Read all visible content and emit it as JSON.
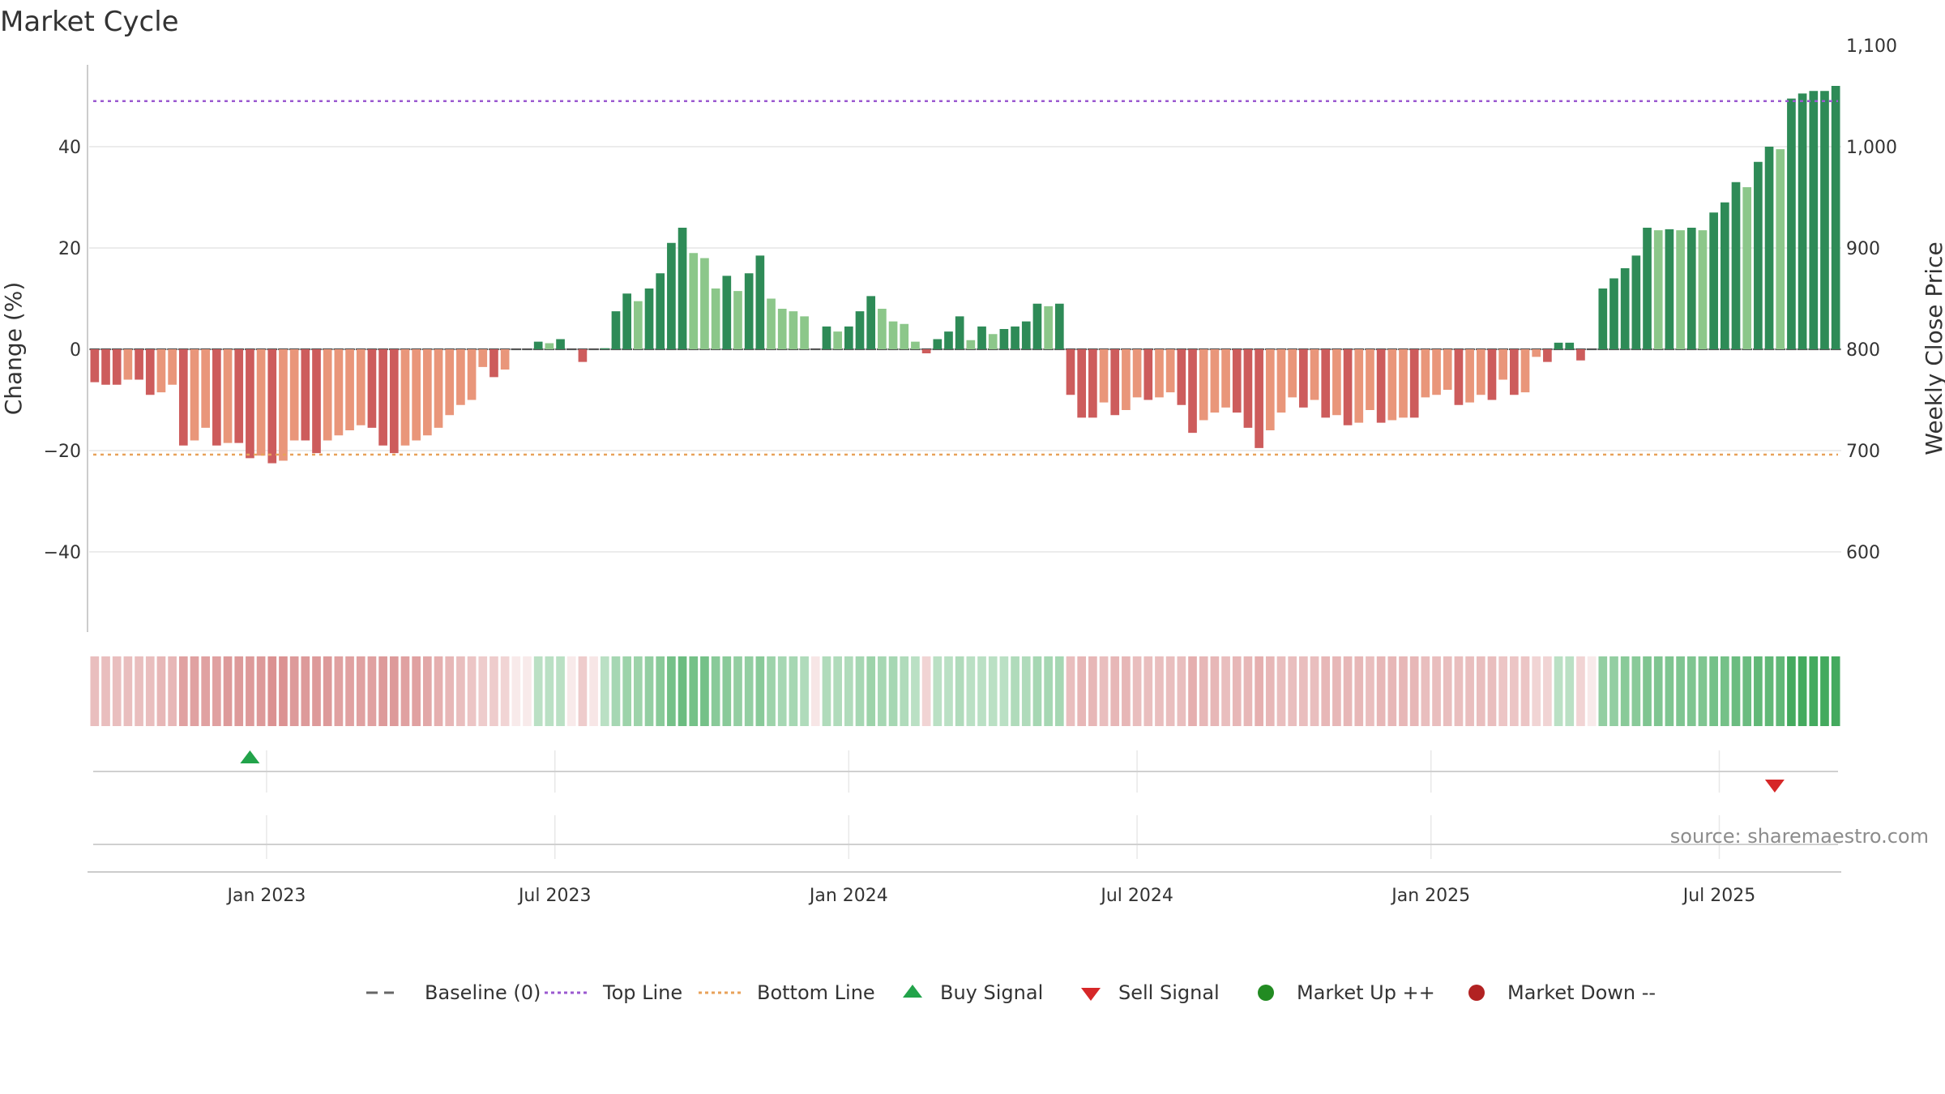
{
  "title": "Market Cycle",
  "source": "source: sharemaestro.com",
  "colors": {
    "strong_up": "#2e8b57",
    "weak_up": "#8cc78a",
    "strong_down": "#cd5c5c",
    "weak_down": "#e9967a",
    "top_line": "#9b59d0",
    "bottom_line": "#e8a25a",
    "baseline": "#555555",
    "buy": "#22a34a",
    "sell": "#d62728",
    "market_up": "#228b22",
    "market_down": "#b22222"
  },
  "legend": [
    {
      "label": "Baseline (0)",
      "symbol": "dash-line",
      "color": "#666666"
    },
    {
      "label": "Top Line",
      "symbol": "dotted-line",
      "color": "#9b59d0"
    },
    {
      "label": "Bottom Line",
      "symbol": "dotted-line",
      "color": "#e8a25a"
    },
    {
      "label": "Buy Signal",
      "symbol": "triangle-up",
      "color": "#22a34a"
    },
    {
      "label": "Sell Signal",
      "symbol": "triangle-down",
      "color": "#d62728"
    },
    {
      "label": "Market Up ++",
      "symbol": "circle",
      "color": "#228b22"
    },
    {
      "label": "Market Down --",
      "symbol": "circle",
      "color": "#b22222"
    }
  ],
  "chart_data": {
    "type": "bar",
    "ylabel": "Change (%)",
    "y2label": "Weekly Close Price",
    "ylim": [
      -56,
      56
    ],
    "y_ticks": [
      {
        "value": 40,
        "label": "40"
      },
      {
        "value": 20,
        "label": "20"
      },
      {
        "value": 0,
        "label": "0"
      },
      {
        "value": -20,
        "label": "−20"
      },
      {
        "value": -40,
        "label": "−40"
      }
    ],
    "y2_ticks": [
      {
        "value": 1100,
        "label": "1,100"
      },
      {
        "value": 1000,
        "label": "1,000"
      },
      {
        "value": 900,
        "label": "900"
      },
      {
        "value": 800,
        "label": "800"
      },
      {
        "value": 700,
        "label": "700"
      },
      {
        "value": 600,
        "label": "600"
      }
    ],
    "y2_reference": {
      "y_at_800": 0,
      "y_at_900": 20
    },
    "x_ticks": [
      {
        "label": "Jan 2023",
        "week": 16
      },
      {
        "label": "Jul 2023",
        "week": 42
      },
      {
        "label": "Jan 2024",
        "week": 68.5
      },
      {
        "label": "Jul 2024",
        "week": 94.5
      },
      {
        "label": "Jan 2025",
        "week": 121
      },
      {
        "label": "Jul 2025",
        "week": 147
      }
    ],
    "top_line": 49,
    "bottom_line": -20.8,
    "buy_signals": [
      {
        "week": 14.5
      }
    ],
    "sell_signals": [
      {
        "week": 152
      }
    ],
    "series": [
      {
        "name": "Change (%)",
        "values": [
          -6.5,
          -7,
          -7,
          -6,
          -6,
          -9,
          -8.5,
          -7,
          -19,
          -18,
          -15.5,
          -19,
          -18.5,
          -18.5,
          -21.5,
          -21,
          -22.5,
          -22,
          -18,
          -18,
          -20.5,
          -18,
          -17,
          -16,
          -15,
          -15.5,
          -19,
          -20.5,
          -19,
          -18,
          -17,
          -15.5,
          -13,
          -11,
          -10,
          -3.5,
          -5.5,
          -4,
          0,
          0,
          1.5,
          1.2,
          2,
          0,
          -2.5,
          0,
          0.2,
          7.5,
          11,
          9.5,
          12,
          15,
          21,
          24,
          19,
          18,
          12,
          14.5,
          11.5,
          15,
          18.5,
          10,
          8,
          7.5,
          6.5,
          0,
          4.5,
          3.5,
          4.5,
          7.5,
          10.5,
          8,
          5.5,
          5,
          1.5,
          -0.8,
          2,
          3.5,
          6.5,
          1.8,
          4.5,
          3,
          4,
          4.5,
          5.5,
          9,
          8.5,
          9,
          -9,
          -13.5,
          -13.5,
          -10.5,
          -13,
          -12,
          -9.5,
          -10,
          -9.5,
          -8.5,
          -11,
          -16.5,
          -14,
          -12.5,
          -11.5,
          -12.5,
          -15.5,
          -19.5,
          -16,
          -12.5,
          -9.5,
          -11.5,
          -10,
          -13.5,
          -13,
          -15,
          -14.5,
          -12,
          -14.5,
          -14,
          -13.5,
          -13.5,
          -9.5,
          -9,
          -8,
          -11,
          -10.5,
          -9,
          -10,
          -6,
          -9,
          -8.5,
          -1.5,
          -2.5,
          1.3,
          1.3,
          -2.2,
          0,
          12,
          14,
          16,
          18.5,
          24,
          23.5,
          23.7,
          23.5,
          24,
          23.5,
          27,
          29,
          33,
          32,
          37,
          40,
          39.5,
          49.5,
          50.5,
          51,
          51,
          52
        ]
      },
      {
        "name": "Regime intensity",
        "values": [
          0.45,
          0.45,
          0.45,
          0.45,
          0.45,
          0.45,
          0.5,
          0.5,
          0.65,
          0.65,
          0.65,
          0.65,
          0.7,
          0.7,
          0.7,
          0.7,
          0.75,
          0.75,
          0.7,
          0.7,
          0.7,
          0.7,
          0.65,
          0.65,
          0.65,
          0.65,
          0.7,
          0.7,
          0.65,
          0.65,
          0.6,
          0.55,
          0.5,
          0.45,
          0.4,
          0.35,
          0.35,
          0.3,
          0.3,
          0.3,
          0.35,
          0.35,
          0.35,
          0.3,
          0.35,
          0.35,
          0.35,
          0.45,
          0.5,
          0.5,
          0.55,
          0.6,
          0.7,
          0.75,
          0.7,
          0.7,
          0.6,
          0.6,
          0.55,
          0.55,
          0.6,
          0.5,
          0.45,
          0.45,
          0.4,
          0.35,
          0.4,
          0.4,
          0.4,
          0.45,
          0.5,
          0.45,
          0.45,
          0.4,
          0.35,
          0.3,
          0.35,
          0.35,
          0.4,
          0.35,
          0.35,
          0.35,
          0.35,
          0.4,
          0.4,
          0.45,
          0.45,
          0.45,
          0.45,
          0.5,
          0.5,
          0.45,
          0.5,
          0.5,
          0.45,
          0.45,
          0.45,
          0.45,
          0.45,
          0.55,
          0.5,
          0.5,
          0.45,
          0.5,
          0.5,
          0.55,
          0.5,
          0.45,
          0.45,
          0.45,
          0.45,
          0.5,
          0.5,
          0.5,
          0.5,
          0.45,
          0.5,
          0.5,
          0.5,
          0.5,
          0.45,
          0.45,
          0.45,
          0.45,
          0.45,
          0.45,
          0.45,
          0.4,
          0.4,
          0.4,
          0.3,
          0.3,
          0.35,
          0.35,
          0.3,
          0.3,
          0.55,
          0.55,
          0.6,
          0.6,
          0.65,
          0.65,
          0.65,
          0.65,
          0.65,
          0.65,
          0.7,
          0.7,
          0.75,
          0.75,
          0.8,
          0.8,
          0.8,
          0.95,
          0.95,
          0.95,
          0.95,
          0.95
        ]
      }
    ]
  }
}
